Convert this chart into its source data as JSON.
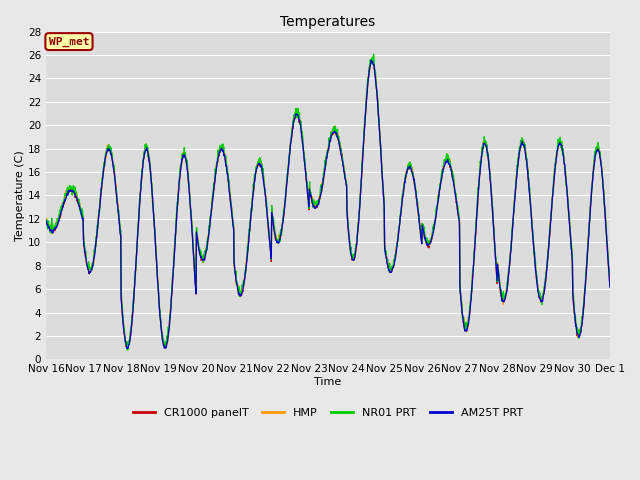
{
  "title": "Temperatures",
  "xlabel": "Time",
  "ylabel": "Temperature (C)",
  "ylim": [
    0,
    28
  ],
  "yticks": [
    0,
    2,
    4,
    6,
    8,
    10,
    12,
    14,
    16,
    18,
    20,
    22,
    24,
    26,
    28
  ],
  "station_label": "WP_met",
  "series_labels": [
    "CR1000 panelT",
    "HMP",
    "NR01 PRT",
    "AM25T PRT"
  ],
  "series_colors": [
    "#cc0000",
    "#ff9900",
    "#00cc00",
    "#0000cc"
  ],
  "bg_color": "#dcdcdc",
  "fig_bg_color": "#e8e8e8",
  "xtick_labels": [
    "Nov 16",
    "Nov 17",
    "Nov 18",
    "Nov 19",
    "Nov 20",
    "Nov 21",
    "Nov 22",
    "Nov 23",
    "Nov 24",
    "Nov 25",
    "Nov 26",
    "Nov 27",
    "Nov 28",
    "Nov 29",
    "Nov 30",
    "Dec 1"
  ],
  "linewidth": 0.9,
  "title_fontsize": 10,
  "axis_label_fontsize": 8,
  "tick_fontsize": 7.5,
  "legend_fontsize": 8,
  "wp_met_fontsize": 8,
  "day_highs": [
    14.5,
    18.0,
    18.0,
    17.5,
    18.0,
    16.8,
    21.0,
    19.5,
    25.5,
    16.5,
    17.0,
    18.5,
    18.5,
    18.5,
    18.0
  ],
  "day_lows": [
    11.0,
    7.5,
    1.0,
    1.0,
    8.5,
    5.5,
    10.0,
    13.0,
    8.5,
    7.5,
    9.8,
    2.5,
    5.0,
    5.0,
    2.0
  ],
  "n_days": 15,
  "pts_per_day": 96
}
